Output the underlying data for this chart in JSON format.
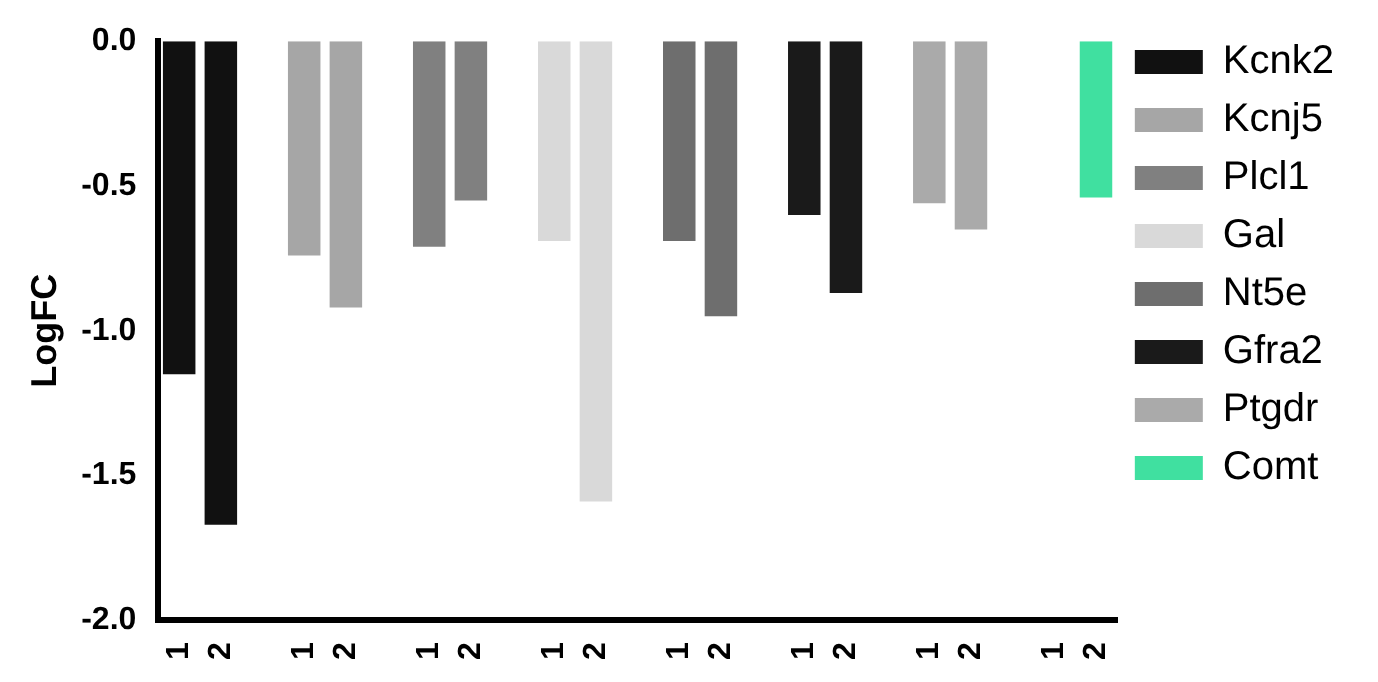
{
  "chart_data": {
    "type": "bar",
    "ylabel": "LogFC",
    "categories": [
      "1",
      "2",
      null,
      "1",
      "2",
      null,
      "1",
      "2",
      null,
      "1",
      "2",
      null,
      "1",
      "2",
      null,
      "1",
      "2",
      null,
      "1",
      "2",
      null,
      "1",
      "2"
    ],
    "series": [
      {
        "name": "Kcnk2",
        "color": "#111111",
        "values": [
          -1.15,
          -1.67,
          null,
          null,
          null,
          null,
          null,
          null,
          null,
          null,
          null,
          null,
          null,
          null,
          null,
          null,
          null,
          null,
          null,
          null,
          null,
          null,
          null
        ]
      },
      {
        "name": "Kcnj5",
        "color": "#a6a6a6",
        "values": [
          null,
          null,
          null,
          -0.74,
          -0.92,
          null,
          null,
          null,
          null,
          null,
          null,
          null,
          null,
          null,
          null,
          null,
          null,
          null,
          null,
          null,
          null,
          null,
          null
        ]
      },
      {
        "name": "Plcl1",
        "color": "#808080",
        "values": [
          null,
          null,
          null,
          null,
          null,
          null,
          -0.71,
          -0.55,
          null,
          null,
          null,
          null,
          null,
          null,
          null,
          null,
          null,
          null,
          null,
          null,
          null,
          null,
          null
        ]
      },
      {
        "name": "Gal",
        "color": "#d9d9d9",
        "values": [
          null,
          null,
          null,
          null,
          null,
          null,
          null,
          null,
          null,
          -0.69,
          -1.59,
          null,
          null,
          null,
          null,
          null,
          null,
          null,
          null,
          null,
          null,
          null,
          null
        ]
      },
      {
        "name": "Nt5e",
        "color": "#6e6e6e",
        "values": [
          null,
          null,
          null,
          null,
          null,
          null,
          null,
          null,
          null,
          null,
          null,
          null,
          -0.69,
          -0.95,
          null,
          null,
          null,
          null,
          null,
          null,
          null,
          null,
          null
        ]
      },
      {
        "name": "Gfra2",
        "color": "#1a1a1a",
        "values": [
          null,
          null,
          null,
          null,
          null,
          null,
          null,
          null,
          null,
          null,
          null,
          null,
          null,
          null,
          null,
          -0.6,
          -0.87,
          null,
          null,
          null,
          null,
          null,
          null
        ]
      },
      {
        "name": "Ptgdr",
        "color": "#aaaaaa",
        "values": [
          null,
          null,
          null,
          null,
          null,
          null,
          null,
          null,
          null,
          null,
          null,
          null,
          null,
          null,
          null,
          null,
          null,
          null,
          -0.56,
          -0.65,
          null,
          null,
          null
        ]
      },
      {
        "name": "Comt",
        "color": "#40e0a0",
        "values": [
          null,
          null,
          null,
          null,
          null,
          null,
          null,
          null,
          null,
          null,
          null,
          null,
          null,
          null,
          null,
          null,
          null,
          null,
          null,
          null,
          null,
          null,
          -0.54
        ]
      }
    ],
    "ylim": [
      -2.0,
      0
    ],
    "yticks": [
      {
        "value": 0,
        "label": "0.0"
      },
      {
        "value": -0.5,
        "label": "-0.5"
      },
      {
        "value": -1.0,
        "label": "-1.0"
      },
      {
        "value": -1.5,
        "label": "-1.5"
      },
      {
        "value": -2.0,
        "label": "-2.0"
      }
    ],
    "grid": false,
    "legend": "top right"
  }
}
